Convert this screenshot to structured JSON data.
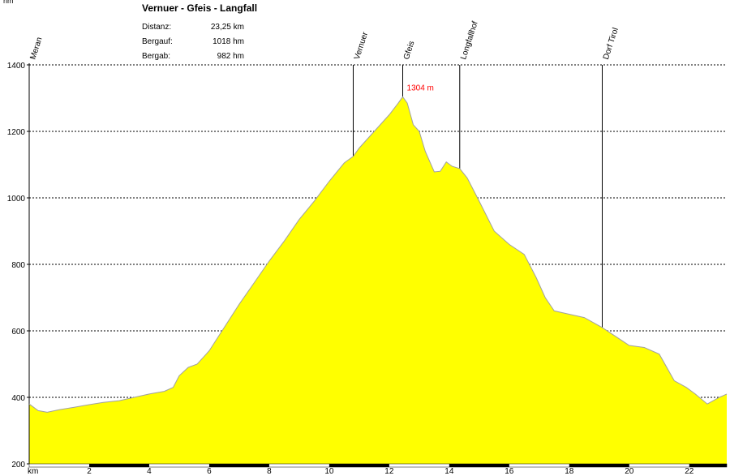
{
  "title": "Vernuer - Gfeis - Langfall",
  "stats": [
    {
      "label": "Distanz:",
      "value": "23,25 km"
    },
    {
      "label": "Bergauf:",
      "value": "1018 hm"
    },
    {
      "label": "Bergab:",
      "value": "982 hm"
    }
  ],
  "colors": {
    "fill": "#ffff00",
    "outline": "#a0a0a0",
    "grid": "#000000",
    "peak_label": "#ff0000",
    "bar": "#000000"
  },
  "chart_data": {
    "type": "area",
    "ylabel": "hm",
    "xlabel": "km",
    "xlim": [
      0,
      23.25
    ],
    "ylim": [
      200,
      1400
    ],
    "y_ticks": [
      200,
      400,
      600,
      800,
      1000,
      1200,
      1400
    ],
    "x_ticks": [
      2,
      4,
      6,
      8,
      10,
      12,
      14,
      16,
      18,
      20,
      22
    ],
    "grid": "horizontal dotted",
    "peak": {
      "x": 12.45,
      "y": 1304,
      "label": "1304 m"
    },
    "waypoints": [
      {
        "name": "Meran",
        "x": 0
      },
      {
        "name": "Vernuer",
        "x": 10.8
      },
      {
        "name": "Gfeis",
        "x": 12.45
      },
      {
        "name": "Longfallhof",
        "x": 14.35
      },
      {
        "name": "Dorf Tirol",
        "x": 19.1
      }
    ],
    "series": [
      {
        "x": [
          0,
          0.3,
          0.6,
          1.0,
          1.5,
          2.0,
          2.5,
          3.0,
          3.5,
          4.0,
          4.5,
          4.8,
          5.0,
          5.3,
          5.6,
          6.0,
          6.5,
          7.0,
          7.5,
          8.0,
          8.5,
          9.0,
          9.5,
          10.0,
          10.5,
          10.8,
          11.0,
          11.5,
          12.0,
          12.3,
          12.45,
          12.6,
          12.8,
          13.0,
          13.2,
          13.5,
          13.7,
          13.9,
          14.1,
          14.35,
          14.6,
          15.0,
          15.5,
          16.0,
          16.5,
          16.9,
          17.2,
          17.5,
          18.0,
          18.5,
          19.1,
          19.6,
          20.0,
          20.5,
          21.0,
          21.5,
          21.9,
          22.2,
          22.6,
          23.0,
          23.25
        ],
        "y": [
          380,
          360,
          355,
          363,
          370,
          378,
          385,
          390,
          400,
          410,
          418,
          430,
          465,
          490,
          500,
          540,
          610,
          680,
          745,
          810,
          870,
          935,
          990,
          1050,
          1105,
          1125,
          1150,
          1200,
          1250,
          1285,
          1304,
          1285,
          1220,
          1200,
          1140,
          1078,
          1080,
          1108,
          1095,
          1088,
          1060,
          990,
          900,
          860,
          830,
          760,
          700,
          660,
          650,
          640,
          610,
          580,
          556,
          550,
          530,
          450,
          430,
          410,
          380,
          400,
          410
        ]
      }
    ]
  }
}
